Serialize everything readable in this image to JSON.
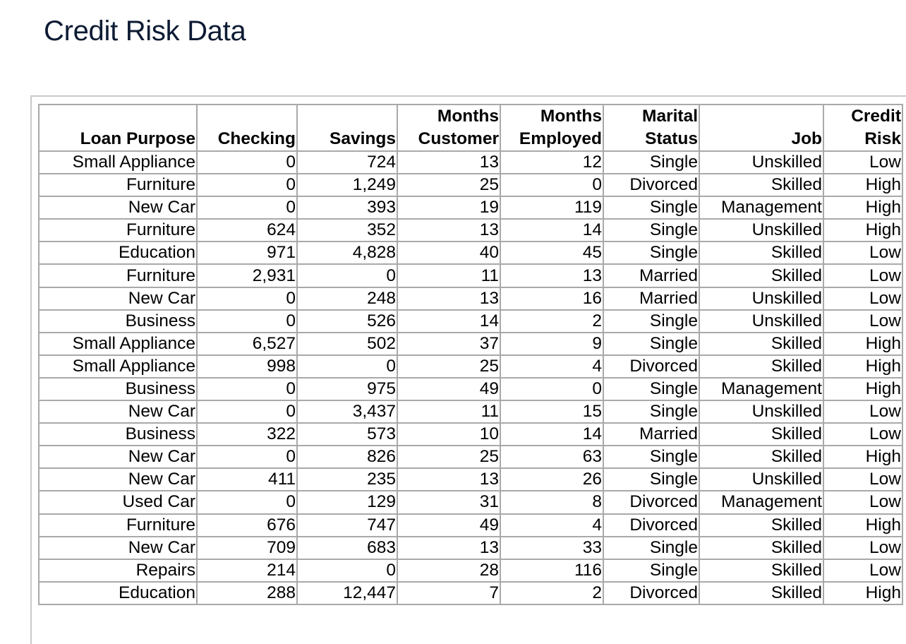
{
  "page": {
    "title": "Credit Risk Data"
  },
  "table": {
    "headers": [
      {
        "line1": "",
        "line2": "Loan Purpose"
      },
      {
        "line1": "",
        "line2": "Checking"
      },
      {
        "line1": "",
        "line2": "Savings"
      },
      {
        "line1": "Months",
        "line2": "Customer"
      },
      {
        "line1": "Months",
        "line2": "Employed"
      },
      {
        "line1": "Marital",
        "line2": "Status"
      },
      {
        "line1": "",
        "line2": "Job"
      },
      {
        "line1": "Credit",
        "line2": "Risk"
      }
    ],
    "rows": [
      [
        "Small Appliance",
        "0",
        "724",
        "13",
        "12",
        "Single",
        "Unskilled",
        "Low"
      ],
      [
        "Furniture",
        "0",
        "1,249",
        "25",
        "0",
        "Divorced",
        "Skilled",
        "High"
      ],
      [
        "New Car",
        "0",
        "393",
        "19",
        "119",
        "Single",
        "Management",
        "High"
      ],
      [
        "Furniture",
        "624",
        "352",
        "13",
        "14",
        "Single",
        "Unskilled",
        "High"
      ],
      [
        "Education",
        "971",
        "4,828",
        "40",
        "45",
        "Single",
        "Skilled",
        "Low"
      ],
      [
        "Furniture",
        "2,931",
        "0",
        "11",
        "13",
        "Married",
        "Skilled",
        "Low"
      ],
      [
        "New Car",
        "0",
        "248",
        "13",
        "16",
        "Married",
        "Unskilled",
        "Low"
      ],
      [
        "Business",
        "0",
        "526",
        "14",
        "2",
        "Single",
        "Unskilled",
        "Low"
      ],
      [
        "Small Appliance",
        "6,527",
        "502",
        "37",
        "9",
        "Single",
        "Skilled",
        "High"
      ],
      [
        "Small Appliance",
        "998",
        "0",
        "25",
        "4",
        "Divorced",
        "Skilled",
        "High"
      ],
      [
        "Business",
        "0",
        "975",
        "49",
        "0",
        "Single",
        "Management",
        "High"
      ],
      [
        "New Car",
        "0",
        "3,437",
        "11",
        "15",
        "Single",
        "Unskilled",
        "Low"
      ],
      [
        "Business",
        "322",
        "573",
        "10",
        "14",
        "Married",
        "Skilled",
        "Low"
      ],
      [
        "New Car",
        "0",
        "826",
        "25",
        "63",
        "Single",
        "Skilled",
        "High"
      ],
      [
        "New Car",
        "411",
        "235",
        "13",
        "26",
        "Single",
        "Unskilled",
        "Low"
      ],
      [
        "Used Car",
        "0",
        "129",
        "31",
        "8",
        "Divorced",
        "Management",
        "Low"
      ],
      [
        "Furniture",
        "676",
        "747",
        "49",
        "4",
        "Divorced",
        "Skilled",
        "High"
      ],
      [
        "New Car",
        "709",
        "683",
        "13",
        "33",
        "Single",
        "Skilled",
        "Low"
      ],
      [
        "Repairs",
        "214",
        "0",
        "28",
        "116",
        "Single",
        "Skilled",
        "Low"
      ],
      [
        "Education",
        "288",
        "12,447",
        "7",
        "2",
        "Divorced",
        "Skilled",
        "High"
      ]
    ]
  }
}
